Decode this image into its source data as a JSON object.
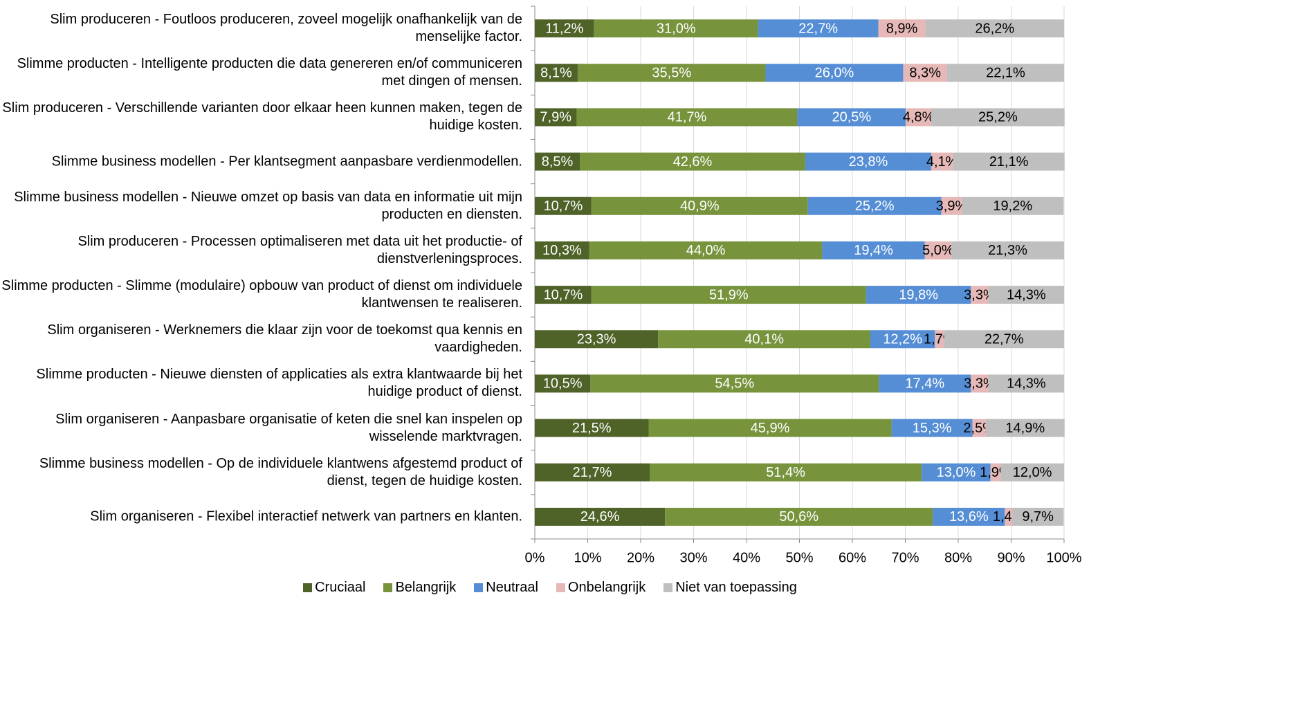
{
  "chart_data": {
    "type": "stacked_barh",
    "categories": [
      "Slim produceren - Foutloos produceren, zoveel mogelijk onafhankelijk van de menselijke factor.",
      "Slimme producten - Intelligente producten die data genereren en/of communiceren met dingen of mensen.",
      "Slim produceren - Verschillende varianten door elkaar heen kunnen maken, tegen de huidige kosten.",
      "Slimme business modellen - Per klantsegment aanpasbare verdienmodellen.",
      "Slimme business modellen - Nieuwe omzet op basis van data en informatie uit mijn producten en diensten.",
      "Slim produceren - Processen optimaliseren met data uit het productie- of dienstverleningsproces.",
      "Slimme producten - Slimme (modulaire) opbouw van product of dienst om individuele klantwensen te realiseren.",
      "Slim organiseren - Werknemers die klaar zijn voor de toekomst qua kennis en vaardigheden.",
      "Slimme producten - Nieuwe diensten of applicaties als extra klantwaarde bij het huidige product of dienst.",
      "Slim organiseren - Aanpasbare organisatie of keten die snel kan inspelen op wisselende marktvragen.",
      "Slimme business modellen - Op de individuele klantwens afgestemd product of dienst, tegen de huidige kosten.",
      "Slim organiseren - Flexibel interactief netwerk van partners en klanten."
    ],
    "series": [
      {
        "name": "Cruciaal",
        "color": "#4f6228",
        "label_color": "#ffffff",
        "values": [
          11.2,
          8.1,
          7.9,
          8.5,
          10.7,
          10.3,
          10.7,
          23.3,
          10.5,
          21.5,
          21.7,
          24.6
        ],
        "value_labels": [
          "11,2%",
          "8,1%",
          "7,9%",
          "8,5%",
          "10,7%",
          "10,3%",
          "10,7%",
          "23,3%",
          "10,5%",
          "21,5%",
          "21,7%",
          "24,6%"
        ]
      },
      {
        "name": "Belangrijk",
        "color": "#77933c",
        "label_color": "#ffffff",
        "values": [
          31.0,
          35.5,
          41.7,
          42.6,
          40.9,
          44.0,
          51.9,
          40.1,
          54.5,
          45.9,
          51.4,
          50.6
        ],
        "value_labels": [
          "31,0%",
          "35,5%",
          "41,7%",
          "42,6%",
          "40,9%",
          "44,0%",
          "51,9%",
          "40,1%",
          "54,5%",
          "45,9%",
          "51,4%",
          "50,6%"
        ]
      },
      {
        "name": "Neutraal",
        "color": "#558ed5",
        "label_color": "#ffffff",
        "values": [
          22.7,
          26.0,
          20.5,
          23.8,
          25.2,
          19.4,
          19.8,
          12.2,
          17.4,
          15.3,
          13.0,
          13.6
        ],
        "value_labels": [
          "22,7%",
          "26,0%",
          "20,5%",
          "23,8%",
          "25,2%",
          "19,4%",
          "19,8%",
          "12,2%",
          "17,4%",
          "15,3%",
          "13,0%",
          "13,6%"
        ]
      },
      {
        "name": "Onbelangrijk",
        "color": "#e6b9b8",
        "label_color": "#000000",
        "values": [
          8.9,
          8.3,
          4.8,
          4.1,
          3.9,
          5.0,
          3.3,
          1.7,
          3.3,
          2.5,
          1.9,
          1.4
        ],
        "value_labels": [
          "8,9%",
          "8,3%",
          "4,8%",
          "4,1%",
          "3,9%",
          "5,0%",
          "3,3%",
          "1,7%",
          "3,3%",
          "2,5%",
          "1,9%",
          "1,4%"
        ]
      },
      {
        "name": "Niet van toepassing",
        "color": "#bfbfbf",
        "label_color": "#000000",
        "values": [
          26.2,
          22.1,
          25.2,
          21.1,
          19.2,
          21.3,
          14.3,
          22.7,
          14.3,
          14.9,
          12.0,
          9.7
        ],
        "value_labels": [
          "26,2%",
          "22,1%",
          "25,2%",
          "21,1%",
          "19,2%",
          "21,3%",
          "14,3%",
          "22,7%",
          "14,3%",
          "14,9%",
          "12,0%",
          "9,7%"
        ]
      }
    ],
    "xlim": [
      0,
      100
    ],
    "xticks": [
      {
        "value": 0,
        "label": "0%"
      },
      {
        "value": 10,
        "label": "10%"
      },
      {
        "value": 20,
        "label": "20%"
      },
      {
        "value": 30,
        "label": "30%"
      },
      {
        "value": 40,
        "label": "40%"
      },
      {
        "value": 50,
        "label": "50%"
      },
      {
        "value": 60,
        "label": "60%"
      },
      {
        "value": 70,
        "label": "70%"
      },
      {
        "value": 80,
        "label": "80%"
      },
      {
        "value": 90,
        "label": "90%"
      },
      {
        "value": 100,
        "label": "100%"
      }
    ],
    "grid": true,
    "legend": "bottom"
  }
}
